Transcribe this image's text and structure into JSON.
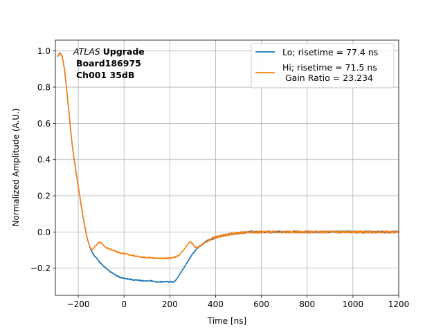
{
  "chart_data": {
    "type": "line",
    "xlabel": "Time [ns]",
    "ylabel": "Normalized Amplitude (A.U.)",
    "xlim": [
      -300,
      1200
    ],
    "ylim": [
      -0.35,
      1.06
    ],
    "xticks": [
      -200,
      0,
      200,
      400,
      600,
      800,
      1000,
      1200
    ],
    "xtick_labels": [
      "−200",
      "0",
      "200",
      "400",
      "600",
      "800",
      "1000",
      "1200"
    ],
    "yticks": [
      -0.2,
      0.0,
      0.2,
      0.4,
      0.6,
      0.8,
      1.0
    ],
    "ytick_labels": [
      "−0.2",
      "0.0",
      "0.2",
      "0.4",
      "0.6",
      "0.8",
      "1.0"
    ],
    "grid": true,
    "legend_position": "top-right",
    "annotation": {
      "italic": "ATLAS",
      "bold": "Upgrade",
      "line2": "Board186975",
      "line3": "Ch001 35dB"
    },
    "series": [
      {
        "name": "Lo; risetime = 77.4 ns",
        "color": "#1f77b4",
        "x": [
          -290,
          -280,
          -270,
          -260,
          -250,
          -240,
          -230,
          -220,
          -210,
          -200,
          -190,
          -180,
          -170,
          -160,
          -150,
          -140,
          -130,
          -120,
          -110,
          -100,
          -80,
          -60,
          -40,
          -20,
          0,
          20,
          40,
          60,
          80,
          100,
          120,
          140,
          160,
          180,
          200,
          220,
          240,
          260,
          280,
          300,
          320,
          340,
          360,
          380,
          400,
          450,
          500,
          550,
          600,
          650,
          700,
          750,
          800,
          850,
          900,
          950,
          1000,
          1050,
          1100,
          1150,
          1200
        ],
        "y": [
          0.97,
          0.99,
          0.97,
          0.9,
          0.78,
          0.65,
          0.52,
          0.42,
          0.33,
          0.25,
          0.17,
          0.09,
          0.02,
          -0.04,
          -0.08,
          -0.11,
          -0.13,
          -0.145,
          -0.16,
          -0.175,
          -0.2,
          -0.22,
          -0.235,
          -0.25,
          -0.255,
          -0.26,
          -0.265,
          -0.265,
          -0.27,
          -0.27,
          -0.27,
          -0.275,
          -0.275,
          -0.275,
          -0.275,
          -0.275,
          -0.24,
          -0.2,
          -0.16,
          -0.12,
          -0.09,
          -0.07,
          -0.05,
          -0.04,
          -0.03,
          -0.015,
          -0.005,
          0.0,
          0.0,
          0.0,
          0.0,
          0.0,
          0.0,
          0.0,
          0.0,
          0.0,
          0.0,
          0.0,
          0.0,
          0.0,
          0.0
        ]
      },
      {
        "name": "Hi; risetime = 71.5 ns\n Gain Ratio = 23.234",
        "color": "#ff7f0e",
        "x": [
          -290,
          -280,
          -270,
          -260,
          -250,
          -240,
          -230,
          -220,
          -210,
          -200,
          -190,
          -180,
          -170,
          -160,
          -150,
          -140,
          -130,
          -120,
          -110,
          -100,
          -90,
          -80,
          -60,
          -40,
          -20,
          0,
          20,
          40,
          60,
          80,
          100,
          120,
          140,
          160,
          180,
          200,
          220,
          240,
          260,
          280,
          290,
          300,
          310,
          320,
          340,
          360,
          380,
          400,
          450,
          500,
          550,
          600,
          650,
          700,
          750,
          800,
          850,
          900,
          950,
          1000,
          1050,
          1100,
          1150,
          1200
        ],
        "y": [
          0.97,
          0.99,
          0.97,
          0.9,
          0.78,
          0.65,
          0.52,
          0.42,
          0.33,
          0.25,
          0.17,
          0.09,
          0.02,
          -0.04,
          -0.08,
          -0.1,
          -0.085,
          -0.07,
          -0.055,
          -0.06,
          -0.075,
          -0.085,
          -0.095,
          -0.105,
          -0.115,
          -0.12,
          -0.125,
          -0.13,
          -0.135,
          -0.14,
          -0.14,
          -0.142,
          -0.145,
          -0.145,
          -0.145,
          -0.145,
          -0.14,
          -0.13,
          -0.1,
          -0.065,
          -0.055,
          -0.065,
          -0.085,
          -0.085,
          -0.07,
          -0.055,
          -0.04,
          -0.03,
          -0.015,
          -0.005,
          0.0,
          0.0,
          0.0,
          0.0,
          0.0,
          0.0,
          0.0,
          0.0,
          0.0,
          0.0,
          0.0,
          0.0,
          0.0,
          0.0
        ]
      }
    ]
  }
}
